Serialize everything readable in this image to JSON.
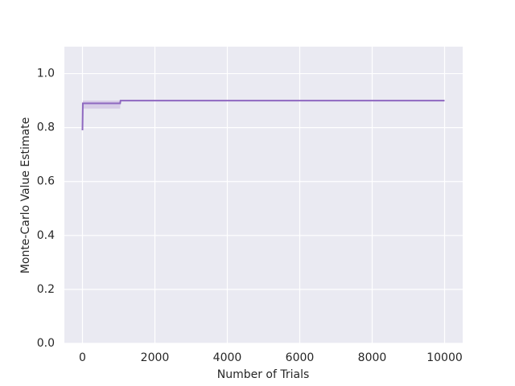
{
  "chart_data": {
    "type": "line",
    "xlabel": "Number of Trials",
    "ylabel": "Monte-Carlo Value Estimate",
    "x": [
      0,
      10,
      1040,
      1050,
      10000
    ],
    "series": [
      {
        "color": "#8e67c0",
        "values": [
          0.79,
          0.89,
          0.89,
          0.9,
          0.9
        ],
        "band_color": "#c9b8e0",
        "lower": [
          0.78,
          0.87,
          0.87,
          0.9,
          0.9
        ],
        "upper": [
          0.8,
          0.9,
          0.9,
          0.9,
          0.9
        ]
      }
    ],
    "xlim": [
      -500,
      10500
    ],
    "ylim": [
      0,
      1.1
    ],
    "xticks": [
      0,
      2000,
      4000,
      6000,
      8000,
      10000
    ],
    "yticks": [
      {
        "value": 0,
        "label": "0.0"
      },
      {
        "value": 0.2,
        "label": "0.2"
      },
      {
        "value": 0.4,
        "label": "0.4"
      },
      {
        "value": 0.6,
        "label": "0.6"
      },
      {
        "value": 0.8,
        "label": "0.8"
      },
      {
        "value": 1.0,
        "label": "1.0"
      }
    ],
    "grid": true
  }
}
